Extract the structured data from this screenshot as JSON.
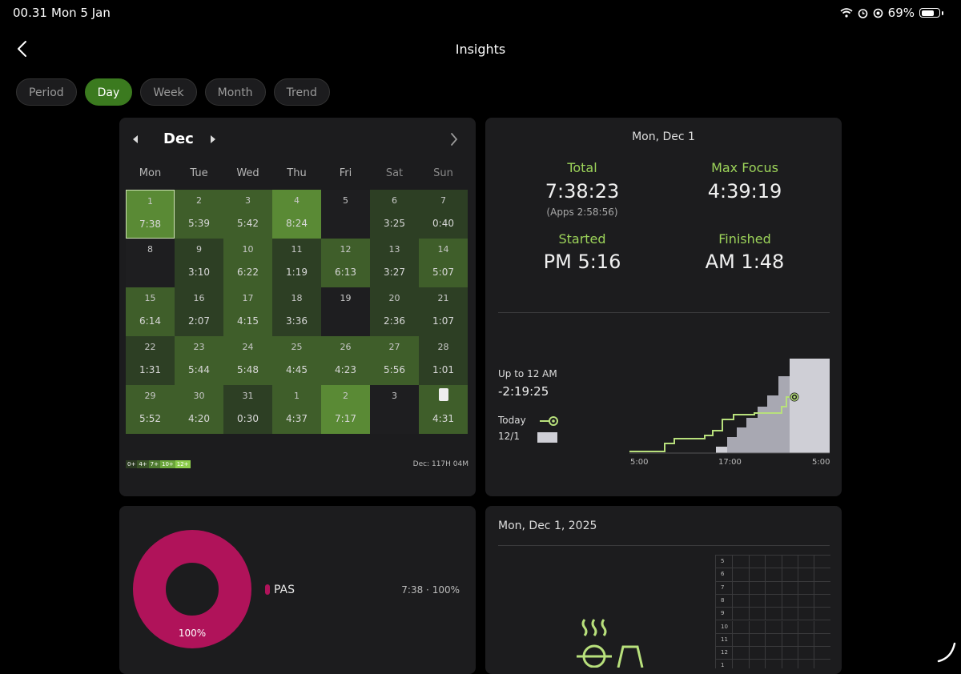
{
  "status": {
    "time": "00.31",
    "date": "Mon 5 Jan",
    "battery": "69%"
  },
  "header": {
    "title": "Insights"
  },
  "tabs": [
    "Period",
    "Day",
    "Week",
    "Month",
    "Trend"
  ],
  "active_tab": "Day",
  "calendar": {
    "month": "Dec",
    "weekdays": [
      "Mon",
      "Tue",
      "Wed",
      "Thu",
      "Fri",
      "Sat",
      "Sun"
    ],
    "weeks": [
      [
        [
          "1",
          "7:38"
        ],
        [
          "2",
          "5:39"
        ],
        [
          "3",
          "5:42"
        ],
        [
          "4",
          "8:24"
        ],
        [
          "5",
          ""
        ],
        [
          "6",
          "3:25"
        ],
        [
          "7",
          "0:40"
        ]
      ],
      [
        [
          "8",
          ""
        ],
        [
          "9",
          "3:10"
        ],
        [
          "10",
          "6:22"
        ],
        [
          "11",
          "1:19"
        ],
        [
          "12",
          "6:13"
        ],
        [
          "13",
          "3:27"
        ],
        [
          "14",
          "5:07"
        ]
      ],
      [
        [
          "15",
          "6:14"
        ],
        [
          "16",
          "2:07"
        ],
        [
          "17",
          "4:15"
        ],
        [
          "18",
          "3:36"
        ],
        [
          "19",
          ""
        ],
        [
          "20",
          "2:36"
        ],
        [
          "21",
          "1:07"
        ]
      ],
      [
        [
          "22",
          "1:31"
        ],
        [
          "23",
          "5:44"
        ],
        [
          "24",
          "5:48"
        ],
        [
          "25",
          "4:45"
        ],
        [
          "26",
          "4:23"
        ],
        [
          "27",
          "5:56"
        ],
        [
          "28",
          "1:01"
        ]
      ],
      [
        [
          "29",
          "5:52"
        ],
        [
          "30",
          "4:20"
        ],
        [
          "31",
          "0:30"
        ],
        [
          "1",
          "4:37"
        ],
        [
          "2",
          "7:17"
        ],
        [
          "3",
          ""
        ],
        [
          "",
          "4:31"
        ]
      ]
    ],
    "legend": [
      "0+",
      "4+",
      "7+",
      "10+",
      "12+"
    ],
    "month_total": "Dec: 117H 04M"
  },
  "summary": {
    "date": "Mon, Dec 1",
    "total_label": "Total",
    "total_value": "7:38:23",
    "apps_note": "(Apps 2:58:56)",
    "max_focus_label": "Max Focus",
    "max_focus_value": "4:39:19",
    "started_label": "Started",
    "started_value": "PM 5:16",
    "finished_label": "Finished",
    "finished_value": "AM 1:48",
    "upto_label": "Up to 12 AM",
    "upto_value": "-2:19:25",
    "legend_today": "Today",
    "legend_date": "12/1",
    "x_ticks": [
      "5:00",
      "17:00",
      "5:00"
    ]
  },
  "breakdown": {
    "subject": "PAS",
    "share": "7:38 · 100%",
    "donut_label": "100%",
    "color": "#b0135a"
  },
  "timeline": {
    "date": "Mon, Dec 1, 2025",
    "hours": [
      "5",
      "6",
      "7",
      "8",
      "9",
      "10",
      "11",
      "12",
      "1"
    ]
  }
}
